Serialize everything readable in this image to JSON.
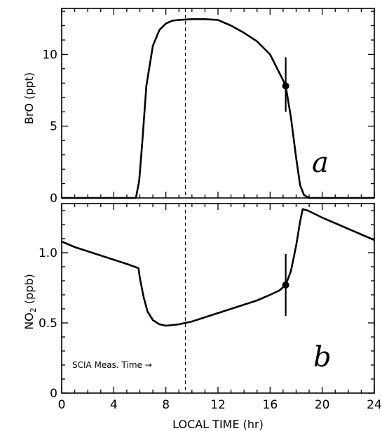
{
  "chart_data": [
    {
      "type": "line",
      "panel_label": "a",
      "ylabel": "BrO (ppt)",
      "ylim": [
        0,
        13.2
      ],
      "yticks": [
        0,
        5,
        10
      ],
      "xlim": [
        0,
        24
      ],
      "xticks": [
        0,
        4,
        8,
        12,
        16,
        20,
        24
      ],
      "show_x_tick_labels": false,
      "series": [
        {
          "x": [
            0,
            5.7,
            5.95,
            6.2,
            6.5,
            7.0,
            7.5,
            8.0,
            8.5,
            9.0,
            10.0,
            11.0,
            12.0,
            13.0,
            14.0,
            15.0,
            16.0,
            16.5,
            17.0,
            17.2,
            17.6,
            18.0,
            18.3,
            18.6,
            19.0,
            24
          ],
          "y": [
            0,
            0,
            1.2,
            4.0,
            7.8,
            10.6,
            11.7,
            12.15,
            12.35,
            12.4,
            12.45,
            12.45,
            12.4,
            12.0,
            11.5,
            10.9,
            10.0,
            9.1,
            8.2,
            7.8,
            5.6,
            2.8,
            0.9,
            0.2,
            0,
            0
          ]
        }
      ],
      "highlight_point": {
        "x": 17.2,
        "y": 7.8,
        "error_low": 6.0,
        "error_high": 9.8
      }
    },
    {
      "type": "line",
      "panel_label": "b",
      "ylabel": "NO2 (ppb)",
      "ylim": [
        0,
        1.35
      ],
      "yticks": [
        0,
        0.5,
        1.0
      ],
      "ytick_labels": [
        "0",
        "0.5",
        "1.0"
      ],
      "xlim": [
        0,
        24
      ],
      "xticks": [
        0,
        4,
        8,
        12,
        16,
        20,
        24
      ],
      "xlabel": "LOCAL TIME (hr)",
      "series": [
        {
          "x": [
            0,
            1,
            2,
            3,
            4,
            5,
            5.9,
            6.0,
            6.3,
            6.6,
            7.0,
            7.5,
            8.0,
            9.0,
            10.0,
            11.0,
            12.0,
            13.0,
            14.0,
            15.0,
            16.0,
            16.7,
            17.2,
            17.6,
            18.0,
            18.3,
            18.5,
            18.9,
            20,
            21,
            22,
            23,
            24
          ],
          "y": [
            1.08,
            1.04,
            1.01,
            0.98,
            0.95,
            0.92,
            0.89,
            0.82,
            0.68,
            0.58,
            0.52,
            0.49,
            0.48,
            0.49,
            0.51,
            0.54,
            0.57,
            0.6,
            0.63,
            0.66,
            0.7,
            0.73,
            0.77,
            0.87,
            1.05,
            1.22,
            1.31,
            1.3,
            1.25,
            1.21,
            1.17,
            1.13,
            1.09
          ]
        }
      ],
      "highlight_point": {
        "x": 17.2,
        "y": 0.77,
        "error_low": 0.55,
        "error_high": 0.99
      }
    }
  ],
  "meas_time_x": 9.5,
  "annotation": "SCIA Meas. Time →",
  "colors": {
    "line": "#000000",
    "background": "#ffffff"
  }
}
